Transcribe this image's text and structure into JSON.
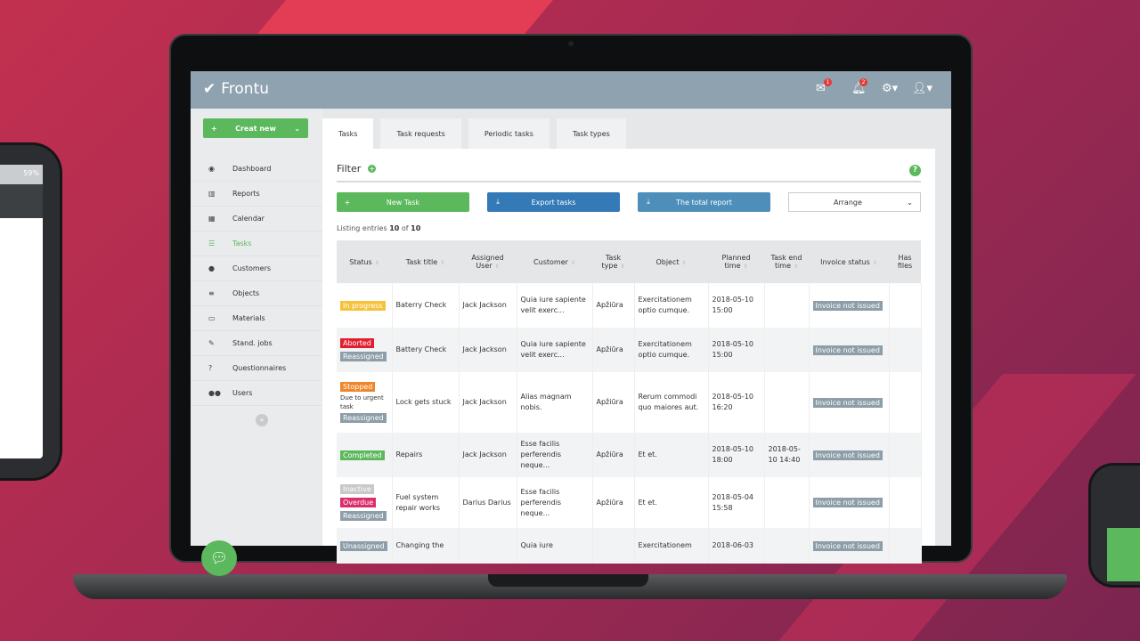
{
  "phone": {
    "battery": "59%"
  },
  "app": {
    "brand": "Frontu",
    "mail_count": "1",
    "notif_count": "2"
  },
  "sidebar": {
    "create_label": "Creat new",
    "items": [
      {
        "label": "Dashboard",
        "icon": "dashboard-icon",
        "glyph": "◉"
      },
      {
        "label": "Reports",
        "icon": "bar-chart-icon",
        "glyph": "▥"
      },
      {
        "label": "Calendar",
        "icon": "calendar-icon",
        "glyph": "▦"
      },
      {
        "label": "Tasks",
        "icon": "tasks-icon",
        "glyph": "☰",
        "active": true
      },
      {
        "label": "Customers",
        "icon": "user-icon",
        "glyph": "●"
      },
      {
        "label": "Objects",
        "icon": "list-icon",
        "glyph": "≡"
      },
      {
        "label": "Materials",
        "icon": "inbox-icon",
        "glyph": "▭"
      },
      {
        "label": "Stand. jobs",
        "icon": "wrench-icon",
        "glyph": "✎"
      },
      {
        "label": "Questionnaires",
        "icon": "question-icon",
        "glyph": "?"
      },
      {
        "label": "Users",
        "icon": "users-icon",
        "glyph": "●●"
      }
    ]
  },
  "tabs": [
    "Tasks",
    "Task requests",
    "Periodic tasks",
    "Task types"
  ],
  "filter": {
    "title": "Filter"
  },
  "actions": {
    "new_task": "New Task",
    "export": "Export tasks",
    "report": "The total report",
    "arrange": "Arrange"
  },
  "listing": {
    "prefix": "Listing entries",
    "shown": "10",
    "of": "of",
    "total": "10"
  },
  "colors": {
    "green": "#5cb85c",
    "blue": "#337ab7",
    "lightblue": "#4d8fba",
    "header": "#8fa2af",
    "in_progress": "#f5c33b",
    "aborted": "#e0202f",
    "reassigned": "#8d9ea8",
    "stopped": "#f0862a",
    "completed": "#5cb85c",
    "inactive": "#c8c8c8",
    "overdue": "#d9306c"
  },
  "table": {
    "headers": [
      "Status",
      "Task title",
      "Assigned User",
      "Customer",
      "Task type",
      "Object",
      "Planned time",
      "Task end time",
      "Invoice status",
      "Has files"
    ],
    "rows": [
      {
        "status": [
          {
            "t": "In progress",
            "c": "#f5c33b"
          }
        ],
        "note": "",
        "title": "Baterry Check",
        "user": "Jack Jackson",
        "customer": "Quia iure sapiente velit exerc...",
        "type": "Apžiūra",
        "object": "Exercitationem optio cumque.",
        "planned": "2018-05-10 15:00",
        "end": "",
        "invoice": "Invoice not issued"
      },
      {
        "status": [
          {
            "t": "Aborted",
            "c": "#e0202f"
          },
          {
            "t": "Reassigned",
            "c": "#8d9ea8"
          }
        ],
        "note": "",
        "title": "Battery Check",
        "user": "Jack Jackson",
        "customer": "Quia iure sapiente velit exerc...",
        "type": "Apžiūra",
        "object": "Exercitationem optio cumque.",
        "planned": "2018-05-10 15:00",
        "end": "",
        "invoice": "Invoice not issued"
      },
      {
        "status": [
          {
            "t": "Stopped",
            "c": "#f0862a"
          },
          {
            "t": "Reassigned",
            "c": "#8d9ea8"
          }
        ],
        "note": "Due to urgent task",
        "title": "Lock gets stuck",
        "user": "Jack Jackson",
        "customer": "Alias magnam nobis.",
        "type": "Apžiūra",
        "object": "Rerum commodi quo maiores aut.",
        "planned": "2018-05-10 16:20",
        "end": "",
        "invoice": "Invoice not issued"
      },
      {
        "status": [
          {
            "t": "Completed",
            "c": "#5cb85c"
          }
        ],
        "note": "",
        "title": "Repairs",
        "user": "Jack Jackson",
        "customer": "Esse facilis perferendis neque...",
        "type": "Apžiūra",
        "object": "Et et.",
        "planned": "2018-05-10 18:00",
        "end": "2018-05-10 14:40",
        "invoice": "Invoice not issued"
      },
      {
        "status": [
          {
            "t": "Inactive",
            "c": "#c8c8c8"
          },
          {
            "t": "Overdue",
            "c": "#d9306c"
          },
          {
            "t": "Reassigned",
            "c": "#8d9ea8"
          }
        ],
        "note": "",
        "title": "Fuel system repair works",
        "user": "Darius Darius",
        "customer": "Esse facilis perferendis neque...",
        "type": "Apžiūra",
        "object": "Et et.",
        "planned": "2018-05-04 15:58",
        "end": "",
        "invoice": "Invoice not issued"
      },
      {
        "status": [
          {
            "t": "Unassigned",
            "c": "#8d9ea8"
          }
        ],
        "note": "",
        "title": "Changing the",
        "user": "",
        "customer": "Quia iure",
        "type": "",
        "object": "Exercitationem",
        "planned": "2018-06-03",
        "end": "",
        "invoice": "Invoice not issued"
      }
    ]
  }
}
